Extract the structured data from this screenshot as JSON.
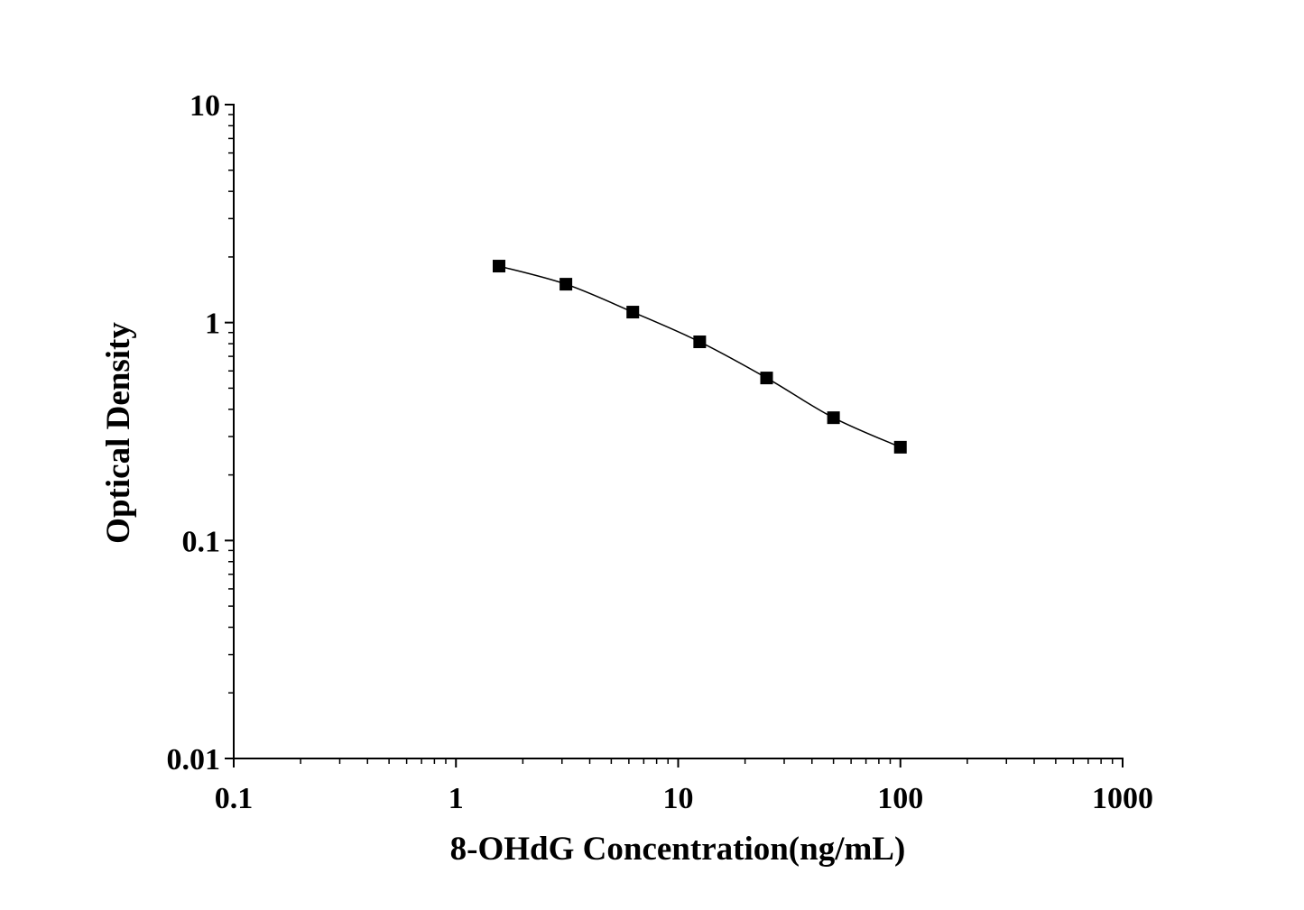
{
  "chart_data": {
    "type": "line",
    "title": "",
    "xlabel": "8-OHdG Concentration(ng/mL)",
    "ylabel": "Optical Density",
    "x_scale": "log",
    "y_scale": "log",
    "xlim": [
      0.1,
      1000
    ],
    "ylim": [
      0.01,
      10
    ],
    "x_ticks": [
      "0.1",
      "1",
      "10",
      "100",
      "1000"
    ],
    "y_ticks": [
      "0.01",
      "0.1",
      "1",
      "10"
    ],
    "grid": false,
    "marker": "square",
    "color": "#000000",
    "series": [
      {
        "x": [
          1.5625,
          3.125,
          6.25,
          12.5,
          25,
          50,
          100
        ],
        "y": [
          1.816,
          1.5,
          1.117,
          0.816,
          0.557,
          0.366,
          0.268
        ]
      }
    ]
  }
}
